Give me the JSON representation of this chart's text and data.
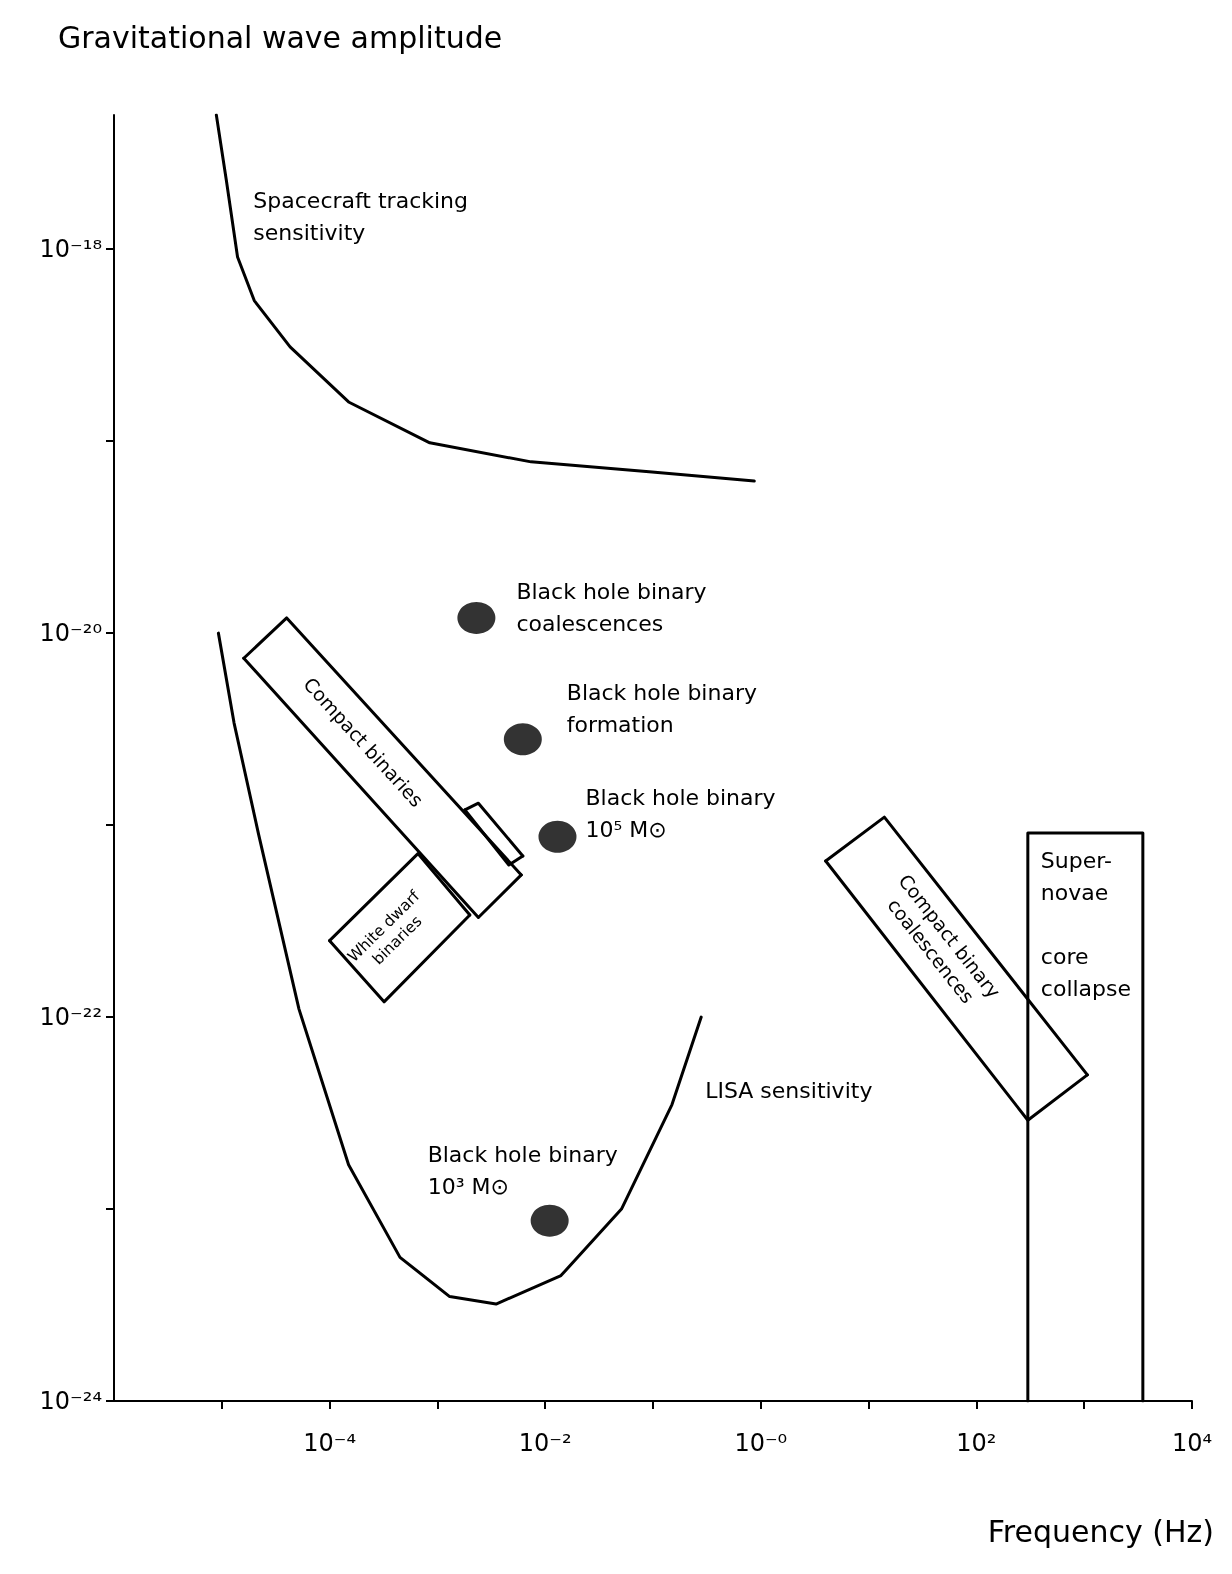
{
  "chart_data": {
    "type": "line",
    "xlabel": "Frequency (Hz)",
    "ylabel": "Gravitational wave amplitude",
    "log": "xy",
    "xlim": [
      1e-06,
      10000.0
    ],
    "ylim": [
      1e-24,
      5e-18
    ],
    "xticks": [
      {
        "value": 1e-05,
        "label": null
      },
      {
        "value": 0.0001,
        "label": "10⁻⁴"
      },
      {
        "value": 0.001,
        "label": null
      },
      {
        "value": 0.01,
        "label": "10⁻²"
      },
      {
        "value": 0.1,
        "label": null
      },
      {
        "value": 1,
        "label": "10⁻⁰"
      },
      {
        "value": 10,
        "label": null
      },
      {
        "value": 100,
        "label": "10²"
      },
      {
        "value": 1000,
        "label": null
      },
      {
        "value": 10000,
        "label": "10⁴"
      }
    ],
    "yticks": [
      {
        "value": 1e-24,
        "label": "10⁻²⁴"
      },
      {
        "value": 1e-23,
        "label": null
      },
      {
        "value": 1e-22,
        "label": "10⁻²²"
      },
      {
        "value": 1e-21,
        "label": null
      },
      {
        "value": 1e-20,
        "label": "10⁻²⁰"
      },
      {
        "value": 1e-19,
        "label": null
      },
      {
        "value": 1e-18,
        "label": "10⁻¹⁸"
      }
    ],
    "grid": false,
    "legend": false,
    "marker": "none",
    "line_style": "solid",
    "series": [
      {
        "name": "Spacecraft tracking\nsensitivity",
        "color": "#000000",
        "x": [
          8.9e-06,
          1.1e-05,
          1.4e-05,
          2e-05,
          4.3e-05,
          0.00015,
          0.00085,
          0.0074,
          0.098,
          0.87
        ],
        "values": [
          5e-18,
          2.3e-18,
          9.1e-19,
          5.4e-19,
          3.1e-19,
          1.6e-19,
          9.8e-20,
          7.8e-20,
          6.9e-20,
          6.2e-20
        ]
      },
      {
        "name": "LISA sensitivity",
        "color": "#000000",
        "x": [
          9.3e-06,
          1.3e-05,
          2.2e-05,
          5.2e-05,
          0.00015,
          0.00045,
          0.0013,
          0.0035,
          0.014,
          0.051,
          0.15,
          0.28
        ],
        "values": [
          1e-20,
          3.4e-21,
          8.9e-22,
          1.1e-22,
          1.7e-23,
          5.6e-24,
          3.5e-24,
          3.2e-24,
          4.5e-24,
          1e-23,
          3.5e-23,
          1e-22
        ]
      },
      {
        "name": "Compact binaries",
        "color": "#000000",
        "x": [
          1.6e-05,
          4e-05,
          0.006
        ],
        "values": [
          7.4e-21,
          1.2e-20,
          5.5e-22
        ]
      },
      {
        "color": "#000000",
        "x": [
          1.6e-05,
          0.0024,
          0.006
        ],
        "values": [
          7.4e-21,
          3.3e-22,
          5.5e-22
        ]
      },
      {
        "color": "#000000",
        "x": [
          0.0018,
          0.0024,
          0.0062
        ],
        "values": [
          1.2e-21,
          1.3e-21,
          6.9e-22
        ]
      },
      {
        "color": "#000000",
        "x": [
          0.0018,
          0.0046,
          0.0062
        ],
        "values": [
          1.2e-21,
          6.2e-22,
          6.9e-22
        ]
      },
      {
        "name": "White dwarf\nbinaries",
        "color": "#000000",
        "x": [
          0.0001,
          0.00066,
          0.002
        ],
        "values": [
          2.5e-22,
          7.1e-22,
          3.4e-22
        ]
      },
      {
        "color": "#000000",
        "x": [
          0.0001,
          0.00032,
          0.002
        ],
        "values": [
          2.5e-22,
          1.2e-22,
          3.4e-22
        ]
      },
      {
        "name": "Compact binary\ncoalescences",
        "color": "#000000",
        "x": [
          4.0,
          14,
          1070
        ],
        "values": [
          6.5e-22,
          1.1e-21,
          5e-23
        ]
      },
      {
        "color": "#000000",
        "x": [
          4.0,
          300,
          1070
        ],
        "values": [
          6.5e-22,
          2.9e-23,
          5e-23
        ]
      },
      {
        "name": "Super-\nnovae\n\ncore\ncollapse",
        "color": "#000000",
        "x": [
          300,
          300,
          3500,
          3500
        ],
        "values": [
          1e-24,
          9.1e-22,
          9.1e-22,
          1e-24
        ]
      },
      {
        "type": "scatter",
        "marker": "circle",
        "name": "Black hole binary\ncoalescences",
        "color": "#000000",
        "x": [
          0.0023
        ],
        "values": [
          1.2e-20
        ]
      },
      {
        "type": "scatter",
        "marker": "circle",
        "name": "Black hole binary\nformation",
        "color": "#000000",
        "x": [
          0.0062
        ],
        "values": [
          2.8e-21
        ]
      },
      {
        "type": "scatter",
        "marker": "circle",
        "name": "Black hole binary\n10⁵ M⊙",
        "color": "#000000",
        "x": [
          0.013
        ],
        "values": [
          8.7e-22
        ]
      },
      {
        "type": "scatter",
        "marker": "circle",
        "name": "Black hole binary\n10³ M⊙",
        "color": "#000000",
        "x": [
          0.011
        ],
        "values": [
          8.7e-24
        ]
      }
    ]
  }
}
